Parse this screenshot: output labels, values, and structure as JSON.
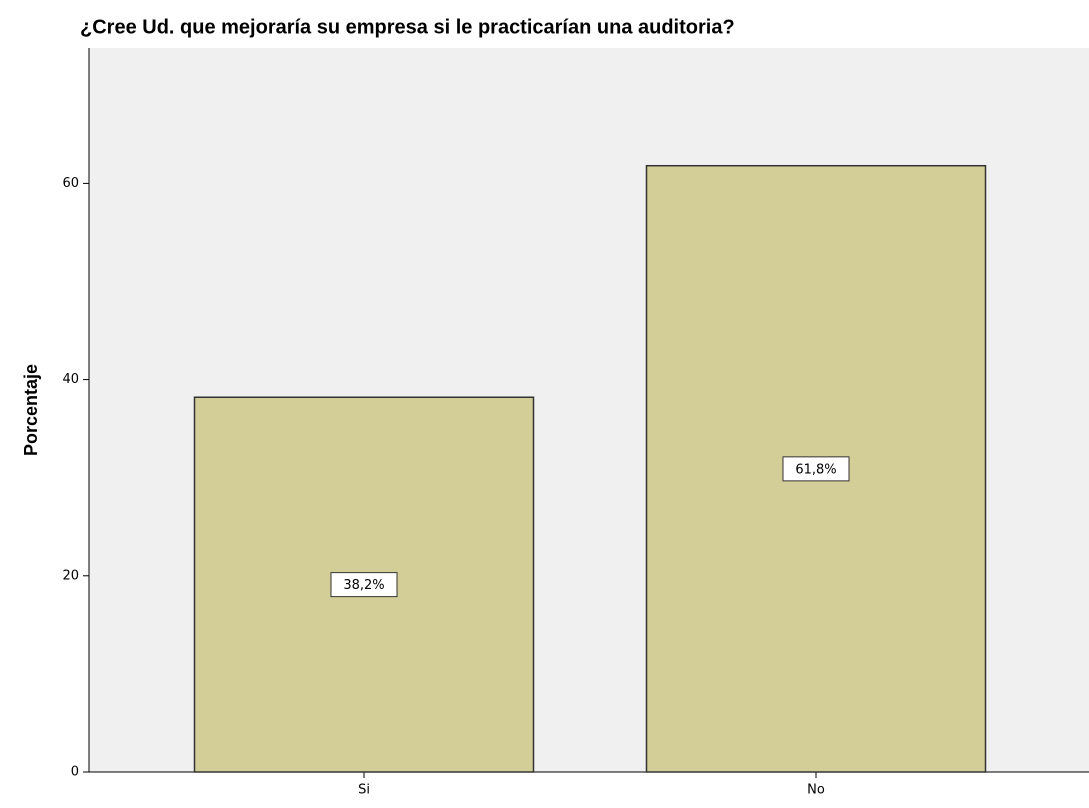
{
  "chart_data": {
    "type": "bar",
    "title": "¿Cree Ud. que mejoraría su empresa si le practicarían una auditoria?",
    "ylabel": "Porcentaje",
    "categories": [
      "Si",
      "No"
    ],
    "values": [
      38.2,
      61.8
    ],
    "value_labels": [
      "38,2%",
      "61,8%"
    ],
    "color": "#d3ce97",
    "ylim": [
      0,
      73.8
    ],
    "yticks": [
      0,
      20,
      40,
      60
    ],
    "grid": false
  }
}
